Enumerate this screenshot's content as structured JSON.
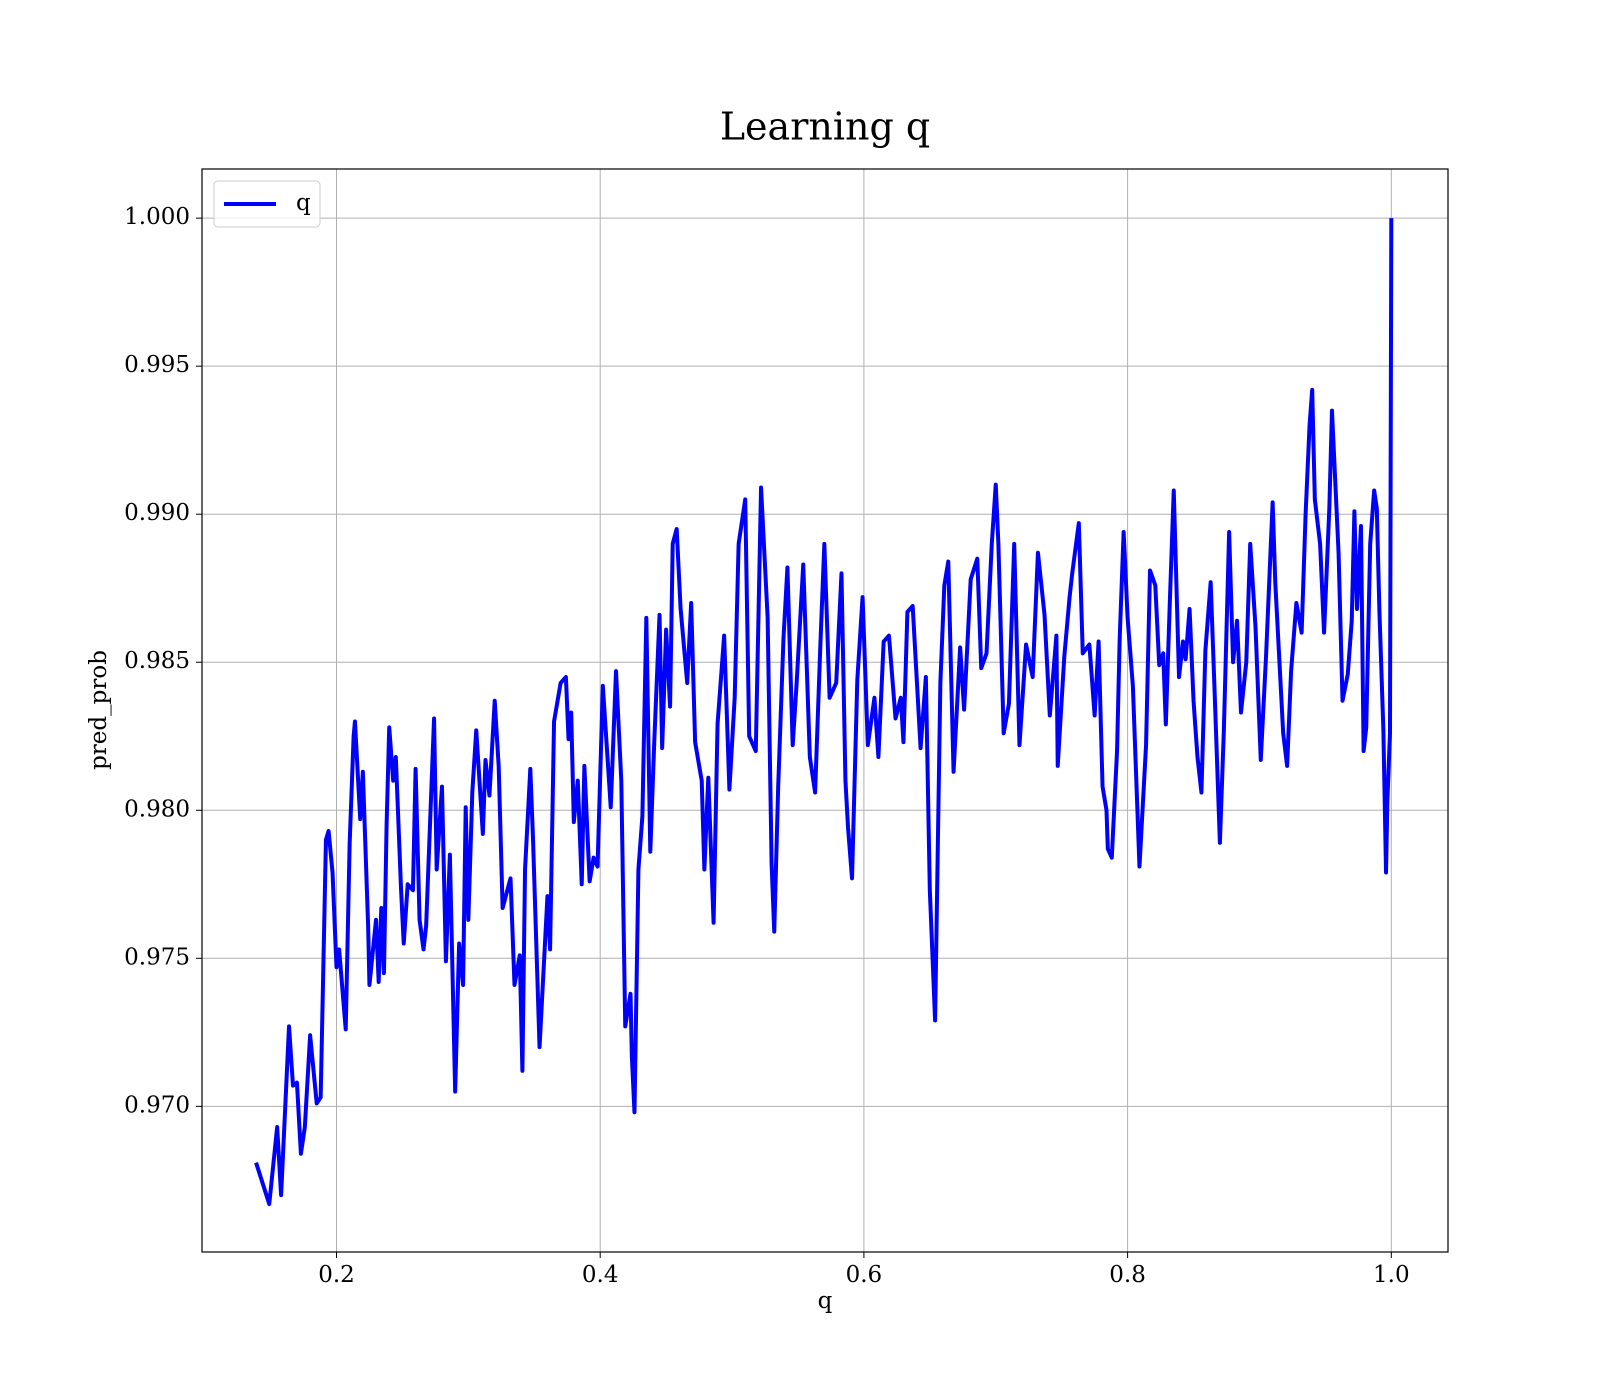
{
  "chart_data": {
    "type": "line",
    "title": "Learning q",
    "xlabel": "q",
    "ylabel": "pred_prob",
    "x": [
      0.139,
      0.149,
      0.155,
      0.158,
      0.164,
      0.167,
      0.17,
      0.173,
      0.176,
      0.18,
      0.185,
      0.188,
      0.192,
      0.194,
      0.197,
      0.2,
      0.202,
      0.207,
      0.21,
      0.213,
      0.214,
      0.218,
      0.22,
      0.224,
      0.225,
      0.23,
      0.232,
      0.234,
      0.236,
      0.238,
      0.24,
      0.243,
      0.245,
      0.249,
      0.251,
      0.254,
      0.258,
      0.26,
      0.263,
      0.266,
      0.268,
      0.274,
      0.276,
      0.28,
      0.283,
      0.286,
      0.29,
      0.293,
      0.296,
      0.298,
      0.3,
      0.303,
      0.306,
      0.311,
      0.313,
      0.316,
      0.32,
      0.323,
      0.326,
      0.332,
      0.335,
      0.339,
      0.341,
      0.343,
      0.347,
      0.349,
      0.354,
      0.36,
      0.362,
      0.365,
      0.37,
      0.374,
      0.376,
      0.378,
      0.38,
      0.383,
      0.386,
      0.388,
      0.392,
      0.395,
      0.398,
      0.402,
      0.408,
      0.412,
      0.416,
      0.419,
      0.423,
      0.424,
      0.426,
      0.429,
      0.432,
      0.435,
      0.438,
      0.441,
      0.445,
      0.447,
      0.45,
      0.453,
      0.455,
      0.458,
      0.461,
      0.466,
      0.469,
      0.472,
      0.477,
      0.479,
      0.482,
      0.486,
      0.489,
      0.494,
      0.498,
      0.502,
      0.505,
      0.51,
      0.513,
      0.518,
      0.522,
      0.527,
      0.53,
      0.532,
      0.535,
      0.539,
      0.542,
      0.546,
      0.549,
      0.554,
      0.559,
      0.563,
      0.567,
      0.57,
      0.574,
      0.579,
      0.583,
      0.586,
      0.588,
      0.591,
      0.595,
      0.599,
      0.603,
      0.608,
      0.611,
      0.615,
      0.619,
      0.624,
      0.628,
      0.63,
      0.633,
      0.637,
      0.643,
      0.647,
      0.65,
      0.654,
      0.658,
      0.661,
      0.664,
      0.668,
      0.673,
      0.676,
      0.681,
      0.686,
      0.689,
      0.693,
      0.697,
      0.7,
      0.702,
      0.706,
      0.71,
      0.714,
      0.718,
      0.723,
      0.728,
      0.732,
      0.737,
      0.741,
      0.746,
      0.747,
      0.752,
      0.756,
      0.758,
      0.763,
      0.766,
      0.771,
      0.775,
      0.778,
      0.781,
      0.784,
      0.785,
      0.788,
      0.792,
      0.794,
      0.797,
      0.8,
      0.804,
      0.809,
      0.814,
      0.817,
      0.821,
      0.824,
      0.827,
      0.829,
      0.832,
      0.835,
      0.839,
      0.842,
      0.844,
      0.847,
      0.85,
      0.853,
      0.856,
      0.859,
      0.863,
      0.866,
      0.87,
      0.873,
      0.877,
      0.88,
      0.883,
      0.886,
      0.89,
      0.893,
      0.897,
      0.901,
      0.905,
      0.91,
      0.912,
      0.918,
      0.921,
      0.924,
      0.928,
      0.932,
      0.935,
      0.938,
      0.94,
      0.942,
      0.946,
      0.949,
      0.953,
      0.955,
      0.96,
      0.963,
      0.967,
      0.97,
      0.972,
      0.974,
      0.977,
      0.979,
      0.981,
      0.984,
      0.987,
      0.989,
      0.991,
      0.994,
      0.996,
      0.997,
      0.999,
      1.0
    ],
    "series": [
      {
        "name": "q",
        "color": "#0000ff",
        "values": [
          0.9681,
          0.9667,
          0.9693,
          0.967,
          0.9727,
          0.9707,
          0.9708,
          0.9684,
          0.9693,
          0.9724,
          0.9701,
          0.9703,
          0.979,
          0.9793,
          0.9779,
          0.9747,
          0.9753,
          0.9726,
          0.9789,
          0.9825,
          0.983,
          0.9797,
          0.9813,
          0.9761,
          0.9741,
          0.9763,
          0.9742,
          0.9767,
          0.9745,
          0.9795,
          0.9828,
          0.981,
          0.9818,
          0.9773,
          0.9755,
          0.9775,
          0.9773,
          0.9814,
          0.9763,
          0.9753,
          0.9761,
          0.9831,
          0.978,
          0.9808,
          0.9749,
          0.9785,
          0.9705,
          0.9755,
          0.9741,
          0.9801,
          0.9763,
          0.9806,
          0.9827,
          0.9792,
          0.9817,
          0.9805,
          0.9837,
          0.9815,
          0.9767,
          0.9777,
          0.9741,
          0.9751,
          0.9712,
          0.978,
          0.9814,
          0.9791,
          0.972,
          0.9771,
          0.9753,
          0.983,
          0.9843,
          0.9845,
          0.9824,
          0.9833,
          0.9796,
          0.981,
          0.9775,
          0.9815,
          0.9776,
          0.9784,
          0.9781,
          0.9842,
          0.9801,
          0.9847,
          0.981,
          0.9727,
          0.9738,
          0.9717,
          0.9698,
          0.978,
          0.9798,
          0.9865,
          0.9786,
          0.9823,
          0.9866,
          0.9821,
          0.9861,
          0.9835,
          0.989,
          0.9895,
          0.9868,
          0.9843,
          0.987,
          0.9823,
          0.981,
          0.978,
          0.9811,
          0.9762,
          0.9829,
          0.9859,
          0.9807,
          0.9838,
          0.989,
          0.9905,
          0.9825,
          0.982,
          0.9909,
          0.9865,
          0.9782,
          0.9759,
          0.9808,
          0.9858,
          0.9882,
          0.9822,
          0.9843,
          0.9883,
          0.9818,
          0.9806,
          0.9856,
          0.989,
          0.9838,
          0.9843,
          0.988,
          0.981,
          0.9794,
          0.9777,
          0.9844,
          0.9872,
          0.9822,
          0.9838,
          0.9818,
          0.9857,
          0.9859,
          0.9831,
          0.9838,
          0.9823,
          0.9867,
          0.9869,
          0.9821,
          0.9845,
          0.9773,
          0.9729,
          0.9843,
          0.9876,
          0.9884,
          0.9813,
          0.9855,
          0.9834,
          0.9878,
          0.9885,
          0.9848,
          0.9853,
          0.989,
          0.991,
          0.989,
          0.9826,
          0.9836,
          0.989,
          0.9822,
          0.9856,
          0.9845,
          0.9887,
          0.9866,
          0.9832,
          0.9859,
          0.9815,
          0.9852,
          0.9872,
          0.988,
          0.9897,
          0.9853,
          0.9856,
          0.9832,
          0.9857,
          0.9808,
          0.98,
          0.9787,
          0.9784,
          0.982,
          0.9858,
          0.9894,
          0.9865,
          0.9842,
          0.9781,
          0.9822,
          0.9881,
          0.9876,
          0.9849,
          0.9853,
          0.9829,
          0.987,
          0.9908,
          0.9845,
          0.9857,
          0.9851,
          0.9868,
          0.9837,
          0.9818,
          0.9806,
          0.9854,
          0.9877,
          0.984,
          0.9789,
          0.9827,
          0.9894,
          0.985,
          0.9864,
          0.9833,
          0.985,
          0.989,
          0.9862,
          0.9817,
          0.9852,
          0.9904,
          0.9877,
          0.9826,
          0.9815,
          0.9847,
          0.987,
          0.986,
          0.99,
          0.993,
          0.9942,
          0.9905,
          0.989,
          0.986,
          0.9902,
          0.9935,
          0.9887,
          0.9837,
          0.9846,
          0.9864,
          0.9901,
          0.9868,
          0.9896,
          0.982,
          0.9828,
          0.989,
          0.9908,
          0.9902,
          0.9867,
          0.9827,
          0.9779,
          0.9803,
          0.9826,
          1.0
        ]
      }
    ],
    "xlim": [
      0.098,
      1.043
    ],
    "ylim": [
      0.96508,
      1.00166
    ],
    "xticks": [
      0.2,
      0.4,
      0.6,
      0.8,
      {
        "value": 1,
        "label": "1.0"
      }
    ],
    "yticks": [
      {
        "value": 0.97,
        "label": "0.970"
      },
      {
        "value": 0.975,
        "label": "0.975"
      },
      {
        "value": 0.98,
        "label": "0.980"
      },
      {
        "value": 0.985,
        "label": "0.985"
      },
      {
        "value": 0.99,
        "label": "0.990"
      },
      {
        "value": 0.995,
        "label": "0.995"
      },
      {
        "value": 1,
        "label": "1.000"
      }
    ],
    "grid": true,
    "legend": "upper left"
  }
}
